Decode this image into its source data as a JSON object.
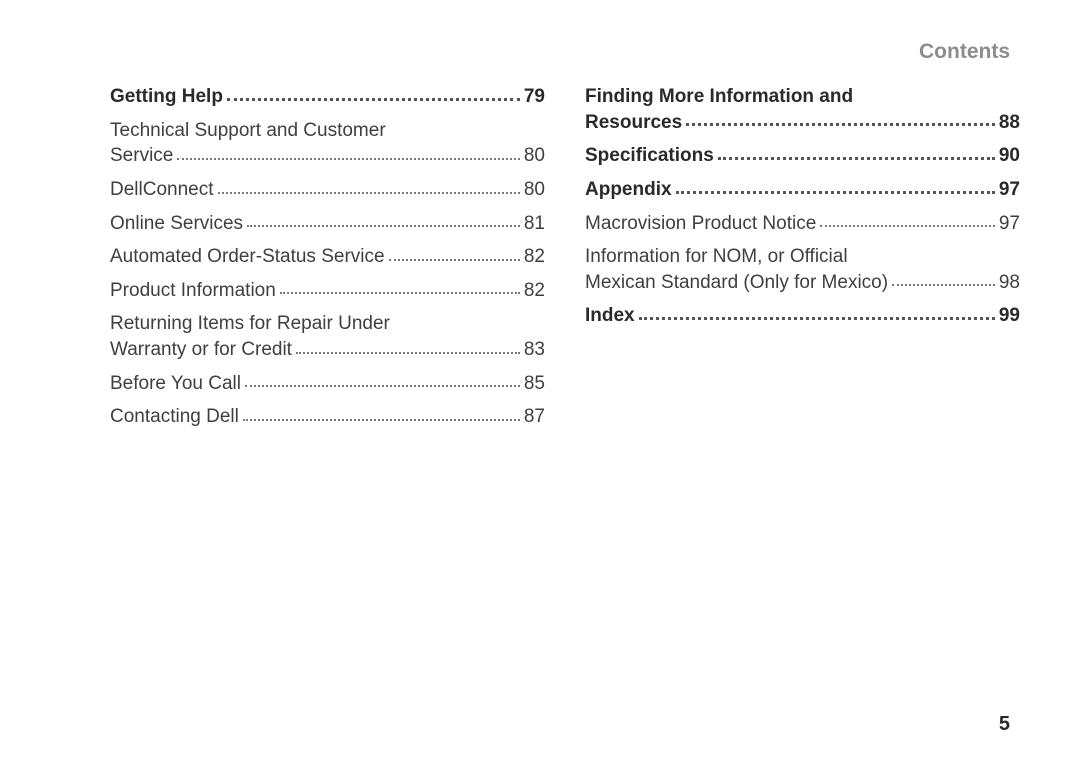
{
  "header": "Contents",
  "page_number": "5",
  "left_column": [
    {
      "type": "section",
      "label": "Getting Help",
      "page": "79",
      "multi": false
    },
    {
      "type": "item",
      "label_lines": [
        "Technical Support and Customer",
        "Service"
      ],
      "page": "80",
      "multi": true
    },
    {
      "type": "item",
      "label": "DellConnect",
      "page": "80",
      "multi": false
    },
    {
      "type": "item",
      "label": "Online Services",
      "page": "81",
      "multi": false
    },
    {
      "type": "item",
      "label": "Automated Order-Status Service",
      "page": "82",
      "multi": false
    },
    {
      "type": "item",
      "label": "Product Information",
      "page": "82",
      "multi": false
    },
    {
      "type": "item",
      "label_lines": [
        "Returning Items for Repair Under",
        "Warranty or for Credit"
      ],
      "page": "83",
      "multi": true
    },
    {
      "type": "item",
      "label": "Before You Call",
      "page": "85",
      "multi": false
    },
    {
      "type": "item",
      "label": "Contacting Dell",
      "page": "87",
      "multi": false
    }
  ],
  "right_column": [
    {
      "type": "section",
      "label_lines": [
        "Finding More Information and",
        "Resources"
      ],
      "page": "88",
      "multi": true
    },
    {
      "type": "section",
      "label": "Specifications",
      "page": "90",
      "multi": false
    },
    {
      "type": "section",
      "label": "Appendix",
      "page": "97",
      "multi": false
    },
    {
      "type": "item",
      "label": "Macrovision Product Notice",
      "page": "97",
      "multi": false
    },
    {
      "type": "item",
      "label_lines": [
        "Information for NOM, or Official",
        "Mexican Standard (Only for Mexico)"
      ],
      "page": "98",
      "multi": true
    },
    {
      "type": "section",
      "label": "Index",
      "page": "99",
      "multi": false
    }
  ]
}
